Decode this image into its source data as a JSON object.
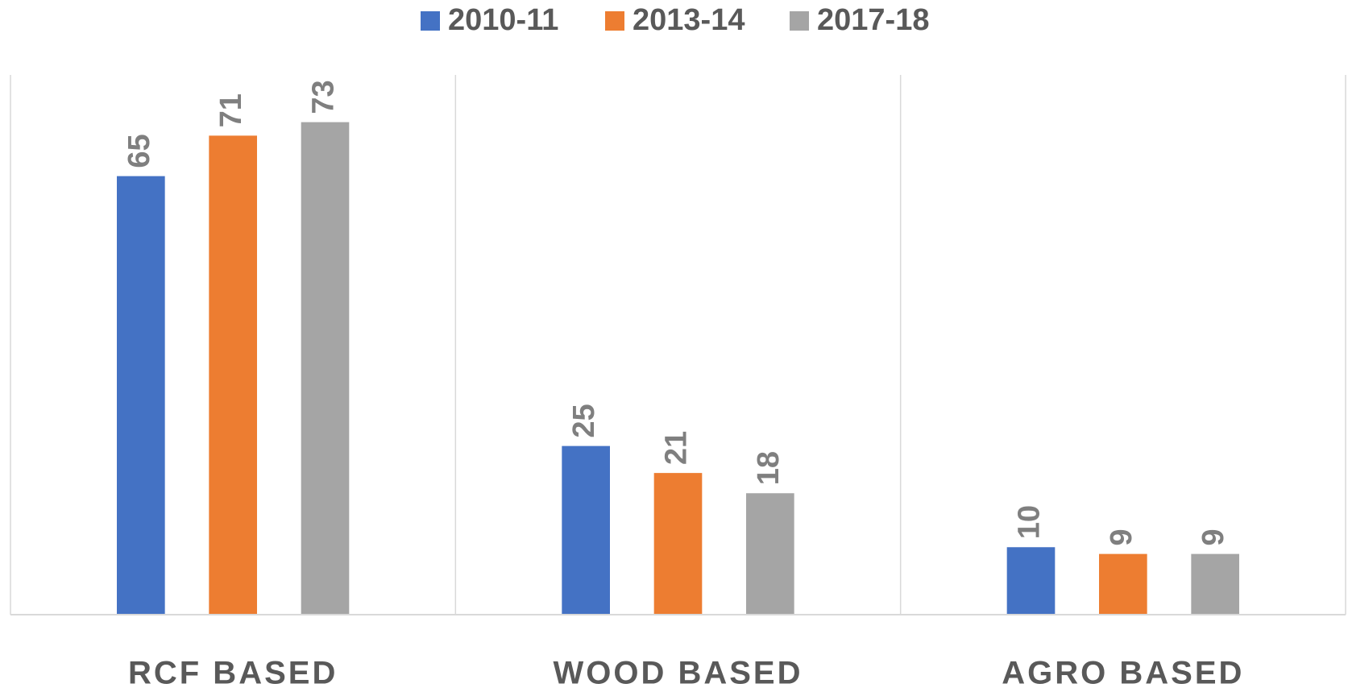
{
  "chart_data": {
    "type": "bar",
    "categories": [
      "RCF BASED",
      "WOOD BASED",
      "AGRO BASED"
    ],
    "series": [
      {
        "name": "2010-11",
        "color": "#4472c4",
        "values": [
          65,
          25,
          10
        ]
      },
      {
        "name": "2013-14",
        "color": "#ed7d31",
        "values": [
          71,
          21,
          9
        ]
      },
      {
        "name": "2017-18",
        "color": "#a5a5a5",
        "values": [
          73,
          18,
          9
        ]
      }
    ],
    "ylim": [
      0,
      80
    ],
    "legend": "top"
  }
}
